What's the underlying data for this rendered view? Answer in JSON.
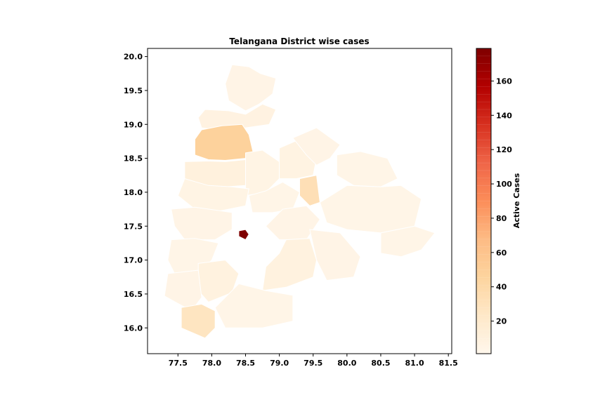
{
  "chart_data": {
    "type": "choropleth",
    "title": "Telangana District wise cases",
    "xlim": [
      77.05,
      81.55
    ],
    "ylim": [
      15.62,
      20.12
    ],
    "x_ticks": [
      77.5,
      78.0,
      78.5,
      79.0,
      79.5,
      80.0,
      80.5,
      81.0,
      81.5
    ],
    "x_tick_labels": [
      "77.5",
      "78.0",
      "78.5",
      "79.0",
      "79.5",
      "80.0",
      "80.5",
      "81.0",
      "81.5"
    ],
    "y_ticks": [
      16.0,
      16.5,
      17.0,
      17.5,
      18.0,
      18.5,
      19.0,
      19.5,
      20.0
    ],
    "y_tick_labels": [
      "16.0",
      "16.5",
      "17.0",
      "17.5",
      "18.0",
      "18.5",
      "19.0",
      "19.5",
      "20.0"
    ],
    "colorbar": {
      "label": "Active Cases",
      "min": 1,
      "max": 179,
      "ticks": [
        20,
        40,
        60,
        80,
        100,
        120,
        140,
        160
      ],
      "tick_labels": [
        "20",
        "40",
        "60",
        "80",
        "100",
        "120",
        "140",
        "160"
      ],
      "colormap": "OrRd",
      "stops": [
        "#fff7ec",
        "#fee8c8",
        "#fdd49e",
        "#fdbb84",
        "#fc8d59",
        "#ef6548",
        "#d7301f",
        "#b30000",
        "#7f0000"
      ]
    },
    "districts": [
      {
        "value": 5,
        "outline": [
          [
            78.3,
            19.88
          ],
          [
            78.55,
            19.85
          ],
          [
            78.72,
            19.75
          ],
          [
            78.95,
            19.68
          ],
          [
            78.9,
            19.45
          ],
          [
            78.7,
            19.3
          ],
          [
            78.5,
            19.2
          ],
          [
            78.25,
            19.35
          ],
          [
            78.2,
            19.6
          ]
        ]
      },
      {
        "value": 8,
        "outline": [
          [
            77.9,
            19.22
          ],
          [
            78.25,
            19.2
          ],
          [
            78.5,
            19.15
          ],
          [
            78.75,
            19.3
          ],
          [
            78.95,
            19.22
          ],
          [
            78.85,
            19.0
          ],
          [
            78.5,
            18.95
          ],
          [
            78.2,
            18.9
          ],
          [
            77.85,
            18.95
          ],
          [
            77.8,
            19.1
          ]
        ]
      },
      {
        "value": 47,
        "outline": [
          [
            77.75,
            18.78
          ],
          [
            77.85,
            18.92
          ],
          [
            78.15,
            18.98
          ],
          [
            78.45,
            19.0
          ],
          [
            78.55,
            18.85
          ],
          [
            78.62,
            18.55
          ],
          [
            78.5,
            18.5
          ],
          [
            78.2,
            18.47
          ],
          [
            77.95,
            18.48
          ],
          [
            77.75,
            18.55
          ]
        ]
      },
      {
        "value": 10,
        "outline": [
          [
            77.6,
            18.45
          ],
          [
            77.95,
            18.46
          ],
          [
            78.2,
            18.45
          ],
          [
            78.5,
            18.48
          ],
          [
            78.5,
            18.3
          ],
          [
            78.5,
            18.1
          ],
          [
            78.2,
            18.08
          ],
          [
            77.9,
            18.1
          ],
          [
            77.6,
            18.2
          ]
        ]
      },
      {
        "value": 6,
        "outline": [
          [
            78.5,
            18.58
          ],
          [
            78.75,
            18.62
          ],
          [
            79.0,
            18.45
          ],
          [
            79.0,
            18.2
          ],
          [
            78.8,
            18.0
          ],
          [
            78.5,
            17.95
          ],
          [
            78.5,
            18.3
          ]
        ]
      },
      {
        "value": 7,
        "outline": [
          [
            79.0,
            18.65
          ],
          [
            79.3,
            18.78
          ],
          [
            79.55,
            18.5
          ],
          [
            79.5,
            18.25
          ],
          [
            79.25,
            18.2
          ],
          [
            79.0,
            18.2
          ],
          [
            79.0,
            18.45
          ]
        ]
      },
      {
        "value": 5,
        "outline": [
          [
            79.2,
            18.8
          ],
          [
            79.55,
            18.95
          ],
          [
            79.9,
            18.7
          ],
          [
            79.75,
            18.5
          ],
          [
            79.55,
            18.4
          ],
          [
            79.4,
            18.55
          ]
        ]
      },
      {
        "value": 4,
        "outline": [
          [
            79.85,
            18.55
          ],
          [
            80.2,
            18.6
          ],
          [
            80.6,
            18.5
          ],
          [
            80.75,
            18.2
          ],
          [
            80.5,
            18.08
          ],
          [
            80.1,
            18.1
          ],
          [
            79.85,
            18.25
          ]
        ]
      },
      {
        "value": 33,
        "outline": [
          [
            79.3,
            18.2
          ],
          [
            79.55,
            18.25
          ],
          [
            79.6,
            17.85
          ],
          [
            79.45,
            17.8
          ],
          [
            79.3,
            17.95
          ]
        ]
      },
      {
        "value": 4,
        "outline": [
          [
            78.55,
            17.95
          ],
          [
            78.8,
            18.02
          ],
          [
            79.05,
            18.15
          ],
          [
            79.3,
            18.0
          ],
          [
            79.2,
            17.75
          ],
          [
            78.9,
            17.7
          ],
          [
            78.6,
            17.7
          ]
        ]
      },
      {
        "value": 6,
        "outline": [
          [
            77.6,
            18.2
          ],
          [
            77.95,
            18.1
          ],
          [
            78.3,
            18.08
          ],
          [
            78.55,
            18.05
          ],
          [
            78.5,
            17.8
          ],
          [
            78.1,
            17.72
          ],
          [
            77.75,
            17.75
          ],
          [
            77.5,
            17.95
          ]
        ]
      },
      {
        "value": 5,
        "outline": [
          [
            77.4,
            17.75
          ],
          [
            77.75,
            17.78
          ],
          [
            78.1,
            17.73
          ],
          [
            78.3,
            17.7
          ],
          [
            78.3,
            17.45
          ],
          [
            78.05,
            17.3
          ],
          [
            77.6,
            17.3
          ],
          [
            77.45,
            17.5
          ]
        ]
      },
      {
        "value": 4,
        "outline": [
          [
            79.6,
            17.85
          ],
          [
            80.0,
            18.1
          ],
          [
            80.5,
            18.08
          ],
          [
            80.8,
            18.1
          ],
          [
            81.1,
            17.9
          ],
          [
            81.0,
            17.5
          ],
          [
            80.5,
            17.4
          ],
          [
            80.0,
            17.45
          ],
          [
            79.7,
            17.55
          ]
        ]
      },
      {
        "value": 5,
        "outline": [
          [
            79.05,
            17.75
          ],
          [
            79.4,
            17.8
          ],
          [
            79.6,
            17.6
          ],
          [
            79.4,
            17.3
          ],
          [
            79.0,
            17.3
          ],
          [
            78.8,
            17.5
          ]
        ]
      },
      {
        "value": 4,
        "outline": [
          [
            80.5,
            17.4
          ],
          [
            81.0,
            17.5
          ],
          [
            81.3,
            17.4
          ],
          [
            81.1,
            17.15
          ],
          [
            80.8,
            17.05
          ],
          [
            80.5,
            17.1
          ]
        ]
      },
      {
        "value": 179,
        "outline": [
          [
            78.4,
            17.43
          ],
          [
            78.5,
            17.45
          ],
          [
            78.55,
            17.38
          ],
          [
            78.5,
            17.3
          ],
          [
            78.4,
            17.35
          ]
        ]
      },
      {
        "value": 9,
        "outline": [
          [
            79.1,
            17.3
          ],
          [
            79.45,
            17.32
          ],
          [
            79.55,
            17.0
          ],
          [
            79.5,
            16.75
          ],
          [
            79.1,
            16.6
          ],
          [
            78.75,
            16.55
          ],
          [
            78.8,
            16.9
          ],
          [
            79.0,
            17.1
          ]
        ]
      },
      {
        "value": 5,
        "outline": [
          [
            79.45,
            17.45
          ],
          [
            79.9,
            17.4
          ],
          [
            80.2,
            17.05
          ],
          [
            80.1,
            16.75
          ],
          [
            79.7,
            16.7
          ],
          [
            79.55,
            17.0
          ]
        ]
      },
      {
        "value": 4,
        "outline": [
          [
            77.4,
            17.3
          ],
          [
            77.75,
            17.32
          ],
          [
            78.1,
            17.25
          ],
          [
            78.0,
            17.0
          ],
          [
            77.8,
            16.78
          ],
          [
            77.45,
            16.8
          ],
          [
            77.35,
            17.0
          ]
        ]
      },
      {
        "value": 9,
        "outline": [
          [
            77.8,
            16.95
          ],
          [
            78.2,
            17.0
          ],
          [
            78.4,
            16.8
          ],
          [
            78.3,
            16.52
          ],
          [
            77.95,
            16.38
          ],
          [
            77.8,
            16.55
          ]
        ]
      },
      {
        "value": 5,
        "outline": [
          [
            77.35,
            16.8
          ],
          [
            77.8,
            16.85
          ],
          [
            77.85,
            16.45
          ],
          [
            77.7,
            16.25
          ],
          [
            77.3,
            16.47
          ]
        ]
      },
      {
        "value": 27,
        "outline": [
          [
            77.55,
            16.3
          ],
          [
            77.85,
            16.35
          ],
          [
            78.05,
            16.25
          ],
          [
            78.05,
            16.0
          ],
          [
            77.9,
            15.85
          ],
          [
            77.55,
            16.0
          ]
        ]
      },
      {
        "value": 4,
        "outline": [
          [
            78.05,
            16.3
          ],
          [
            78.4,
            16.65
          ],
          [
            78.8,
            16.55
          ],
          [
            79.2,
            16.48
          ],
          [
            79.2,
            16.1
          ],
          [
            78.75,
            16.0
          ],
          [
            78.2,
            16.0
          ]
        ]
      }
    ]
  }
}
